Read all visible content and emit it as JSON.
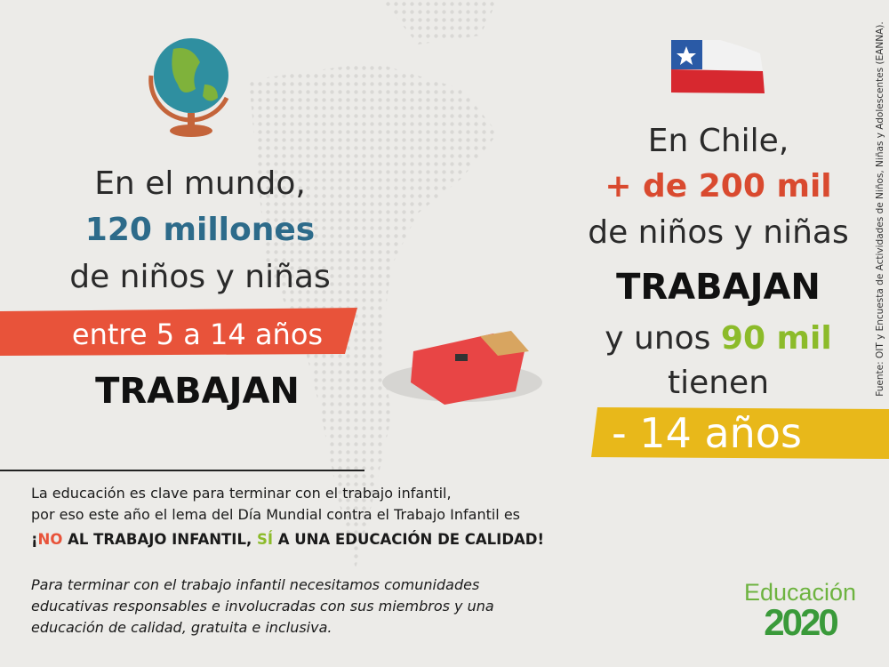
{
  "left": {
    "line1": "En el mundo,",
    "highlight": "120 millones",
    "line3": "de niños y niñas",
    "banner": "entre 5 a 14 años",
    "verb": "TRABAJAN"
  },
  "right": {
    "line1": "En Chile,",
    "highlight": "+ de 200 mil",
    "line3": "de niños y niñas",
    "verb": "TRABAJAN",
    "line5_prefix": "y unos",
    "line5_highlight": "90 mil",
    "line6": "tienen",
    "banner": "- 14 años"
  },
  "source": "Fuente: OIT y Encuesta de Actividades de Niños, Niñas y Adolescentes (EANNA).",
  "footer": {
    "intro_lines": [
      "La educación es clave para terminar con el trabajo infantil,",
      "por eso este año el lema del Día Mundial contra el Trabajo Infantil es"
    ],
    "slogan": [
      "¡",
      "NO",
      "AL TRABAJO INFANTIL,",
      "SÍ",
      "A UNA EDUCACIÓN DE CALIDAD!"
    ],
    "closing_lines": [
      "Para terminar con el trabajo infantil necesitamos comunidades",
      "educativas responsables e involucradas con sus miembros y una",
      "educación de calidad, gratuita e inclusiva."
    ]
  },
  "logo": {
    "word": "Educación",
    "year": "2020"
  }
}
